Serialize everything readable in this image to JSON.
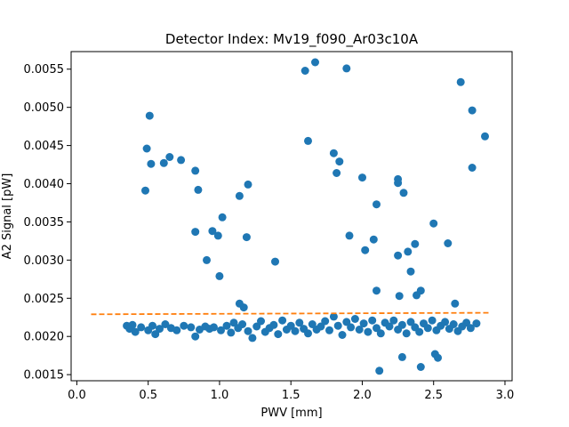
{
  "chart_data": {
    "type": "scatter",
    "title": "Detector Index: Mv19_f090_Ar03c10A",
    "xlabel": "PWV [mm]",
    "ylabel": "A2 Signal [pW]",
    "xlim": [
      -0.04,
      3.05
    ],
    "ylim": [
      0.00142,
      0.00573
    ],
    "xticks": [
      0.0,
      0.5,
      1.0,
      1.5,
      2.0,
      2.5,
      3.0
    ],
    "xtick_labels": [
      "0.0",
      "0.5",
      "1.0",
      "1.5",
      "2.0",
      "2.5",
      "3.0"
    ],
    "yticks": [
      0.0015,
      0.002,
      0.0025,
      0.003,
      0.0035,
      0.004,
      0.0045,
      0.005,
      0.0055
    ],
    "ytick_labels": [
      "0.0015",
      "0.0020",
      "0.0025",
      "0.0030",
      "0.0035",
      "0.0040",
      "0.0045",
      "0.0050",
      "0.0055"
    ],
    "grid": false,
    "colors": {
      "points": "#1f77b4",
      "fit": "#ff7f0e"
    },
    "series": [
      {
        "name": "measurements",
        "points": [
          [
            0.49,
            0.00446
          ],
          [
            0.51,
            0.00489
          ],
          [
            0.52,
            0.00426
          ],
          [
            0.48,
            0.00391
          ],
          [
            0.61,
            0.00427
          ],
          [
            0.65,
            0.00435
          ],
          [
            0.73,
            0.00431
          ],
          [
            0.83,
            0.00417
          ],
          [
            0.85,
            0.00392
          ],
          [
            0.83,
            0.00337
          ],
          [
            0.95,
            0.00338
          ],
          [
            0.99,
            0.00332
          ],
          [
            1.02,
            0.00356
          ],
          [
            0.91,
            0.003
          ],
          [
            1.0,
            0.00279
          ],
          [
            1.14,
            0.00384
          ],
          [
            1.2,
            0.00399
          ],
          [
            1.19,
            0.0033
          ],
          [
            1.39,
            0.00298
          ],
          [
            1.14,
            0.00243
          ],
          [
            1.17,
            0.00238
          ],
          [
            1.6,
            0.00548
          ],
          [
            1.67,
            0.00559
          ],
          [
            1.89,
            0.00551
          ],
          [
            1.62,
            0.00456
          ],
          [
            1.8,
            0.0044
          ],
          [
            1.84,
            0.00429
          ],
          [
            1.82,
            0.00414
          ],
          [
            2.0,
            0.00408
          ],
          [
            2.1,
            0.00373
          ],
          [
            1.91,
            0.00332
          ],
          [
            2.02,
            0.00313
          ],
          [
            2.08,
            0.00327
          ],
          [
            2.25,
            0.00406
          ],
          [
            2.25,
            0.00401
          ],
          [
            2.29,
            0.00388
          ],
          [
            2.25,
            0.00306
          ],
          [
            2.32,
            0.00311
          ],
          [
            2.37,
            0.00321
          ],
          [
            2.5,
            0.00348
          ],
          [
            2.6,
            0.00322
          ],
          [
            2.34,
            0.00285
          ],
          [
            2.1,
            0.0026
          ],
          [
            2.26,
            0.00253
          ],
          [
            2.38,
            0.00254
          ],
          [
            2.41,
            0.0026
          ],
          [
            2.12,
            0.00155
          ],
          [
            2.28,
            0.00173
          ],
          [
            2.41,
            0.0016
          ],
          [
            2.51,
            0.00177
          ],
          [
            2.53,
            0.00172
          ],
          [
            2.69,
            0.00533
          ],
          [
            2.77,
            0.00496
          ],
          [
            2.86,
            0.00462
          ],
          [
            2.77,
            0.00421
          ],
          [
            2.65,
            0.00243
          ],
          [
            0.35,
            0.00214
          ],
          [
            0.37,
            0.0021
          ],
          [
            0.39,
            0.00215
          ],
          [
            0.41,
            0.00206
          ],
          [
            0.45,
            0.00212
          ],
          [
            0.5,
            0.00208
          ],
          [
            0.53,
            0.00214
          ],
          [
            0.55,
            0.00203
          ],
          [
            0.58,
            0.0021
          ],
          [
            0.62,
            0.00216
          ],
          [
            0.66,
            0.00211
          ],
          [
            0.7,
            0.00208
          ],
          [
            0.75,
            0.00214
          ],
          [
            0.8,
            0.00212
          ],
          [
            0.83,
            0.002
          ],
          [
            0.86,
            0.00209
          ],
          [
            0.9,
            0.00213
          ],
          [
            0.93,
            0.0021
          ],
          [
            0.96,
            0.00212
          ],
          [
            1.01,
            0.00208
          ],
          [
            1.05,
            0.00214
          ],
          [
            1.08,
            0.00205
          ],
          [
            1.1,
            0.00218
          ],
          [
            1.13,
            0.00211
          ],
          [
            1.16,
            0.00216
          ],
          [
            1.2,
            0.00207
          ],
          [
            1.23,
            0.00198
          ],
          [
            1.26,
            0.00213
          ],
          [
            1.29,
            0.0022
          ],
          [
            1.32,
            0.00206
          ],
          [
            1.35,
            0.00211
          ],
          [
            1.38,
            0.00215
          ],
          [
            1.41,
            0.00203
          ],
          [
            1.44,
            0.00221
          ],
          [
            1.47,
            0.00209
          ],
          [
            1.5,
            0.00214
          ],
          [
            1.53,
            0.00207
          ],
          [
            1.56,
            0.00218
          ],
          [
            1.59,
            0.0021
          ],
          [
            1.62,
            0.00204
          ],
          [
            1.65,
            0.00216
          ],
          [
            1.68,
            0.00209
          ],
          [
            1.71,
            0.00213
          ],
          [
            1.74,
            0.0022
          ],
          [
            1.77,
            0.00208
          ],
          [
            1.8,
            0.00226
          ],
          [
            1.83,
            0.00214
          ],
          [
            1.86,
            0.00202
          ],
          [
            1.89,
            0.00219
          ],
          [
            1.92,
            0.00212
          ],
          [
            1.95,
            0.00223
          ],
          [
            1.98,
            0.00209
          ],
          [
            2.01,
            0.00217
          ],
          [
            2.04,
            0.00206
          ],
          [
            2.07,
            0.00221
          ],
          [
            2.1,
            0.00211
          ],
          [
            2.13,
            0.00204
          ],
          [
            2.16,
            0.00218
          ],
          [
            2.19,
            0.00213
          ],
          [
            2.22,
            0.00221
          ],
          [
            2.25,
            0.00209
          ],
          [
            2.28,
            0.00215
          ],
          [
            2.31,
            0.00204
          ],
          [
            2.34,
            0.00219
          ],
          [
            2.37,
            0.00212
          ],
          [
            2.4,
            0.00206
          ],
          [
            2.43,
            0.00217
          ],
          [
            2.46,
            0.00211
          ],
          [
            2.49,
            0.00221
          ],
          [
            2.52,
            0.00208
          ],
          [
            2.55,
            0.00214
          ],
          [
            2.58,
            0.00219
          ],
          [
            2.61,
            0.0021
          ],
          [
            2.64,
            0.00216
          ],
          [
            2.67,
            0.00207
          ],
          [
            2.7,
            0.00213
          ],
          [
            2.73,
            0.00218
          ],
          [
            2.76,
            0.00211
          ],
          [
            2.8,
            0.00217
          ]
        ]
      },
      {
        "name": "fit",
        "style": "dashed",
        "x": [
          0.1,
          2.9
        ],
        "y": [
          0.00229,
          0.00231
        ]
      }
    ]
  }
}
